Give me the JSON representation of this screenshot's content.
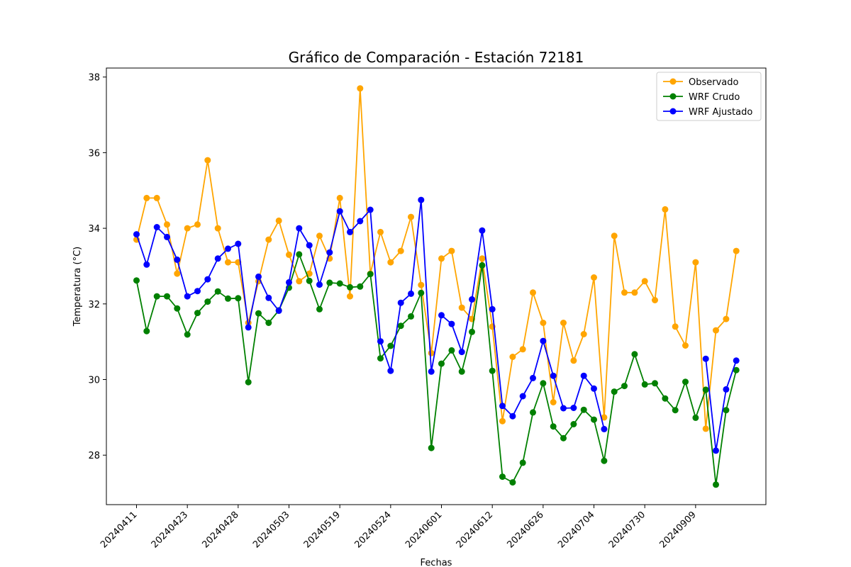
{
  "chart_data": {
    "type": "line",
    "title": "Gráfico de Comparación - Estación 72181",
    "xlabel": "Fechas",
    "ylabel": "Temperatura (°C)",
    "ylim": [
      26.7,
      38.3
    ],
    "yticks": [
      28,
      30,
      32,
      34,
      36,
      38
    ],
    "grid": false,
    "legend_position": "top-right",
    "n_points": 60,
    "x_tick_indices": [
      0,
      5,
      10,
      15,
      20,
      25,
      30,
      35,
      40,
      45,
      50,
      55
    ],
    "x_tick_labels": [
      "20240411",
      "20240423",
      "20240428",
      "20240503",
      "20240519",
      "20240524",
      "20240601",
      "20240612",
      "20240626",
      "20240704",
      "20240730",
      "20240909"
    ],
    "series": [
      {
        "name": "Observado",
        "color": "#FFA500",
        "values": [
          33.7,
          34.8,
          34.8,
          34.1,
          32.8,
          34.0,
          34.1,
          35.8,
          34.0,
          33.1,
          33.1,
          31.5,
          32.6,
          33.7,
          34.2,
          33.3,
          32.6,
          32.8,
          33.8,
          33.2,
          34.8,
          32.2,
          37.7,
          32.8,
          33.9,
          33.1,
          33.4,
          34.3,
          32.5,
          30.7,
          33.2,
          33.4,
          31.9,
          31.6,
          33.2,
          31.4,
          28.9,
          30.6,
          30.8,
          32.3,
          31.5,
          29.4,
          31.5,
          30.5,
          31.2,
          32.7,
          29.0,
          33.8,
          32.3,
          32.3,
          32.6,
          32.1,
          34.5,
          31.4,
          30.9,
          33.1,
          28.7,
          31.3,
          31.6,
          33.4
        ]
      },
      {
        "name": "WRF Crudo",
        "color": "#008000",
        "values": [
          32.62,
          31.28,
          32.2,
          32.2,
          31.88,
          31.19,
          31.76,
          32.06,
          32.33,
          32.14,
          32.15,
          29.93,
          31.75,
          31.5,
          31.83,
          32.43,
          33.31,
          32.61,
          31.86,
          32.56,
          32.54,
          32.44,
          32.46,
          32.79,
          30.56,
          30.89,
          31.42,
          31.67,
          32.29,
          28.19,
          30.42,
          30.77,
          30.21,
          31.26,
          33.02,
          30.23,
          27.43,
          27.28,
          27.8,
          29.13,
          29.9,
          28.76,
          28.45,
          28.82,
          29.2,
          28.94,
          27.85,
          29.68,
          29.83,
          30.67,
          29.87,
          29.9,
          29.5,
          29.19,
          29.94,
          28.99,
          29.73,
          27.22,
          29.19,
          30.25
        ]
      },
      {
        "name": "WRF Ajustado",
        "color": "#0000FF",
        "values": [
          33.84,
          33.04,
          34.03,
          33.77,
          33.17,
          32.2,
          32.34,
          32.65,
          33.2,
          33.46,
          33.59,
          31.38,
          32.72,
          32.16,
          31.82,
          32.57,
          34.0,
          33.55,
          32.51,
          33.36,
          34.45,
          33.9,
          34.19,
          34.49,
          31.01,
          30.23,
          32.03,
          32.27,
          34.75,
          30.21,
          31.7,
          31.47,
          30.73,
          32.12,
          33.94,
          31.86,
          29.3,
          29.03,
          29.56,
          30.04,
          31.02,
          30.1,
          29.24,
          29.25,
          30.1,
          29.76,
          28.69,
          null,
          null,
          null,
          null,
          null,
          null,
          null,
          null,
          null,
          30.55,
          28.12,
          29.74,
          30.5
        ]
      }
    ]
  }
}
